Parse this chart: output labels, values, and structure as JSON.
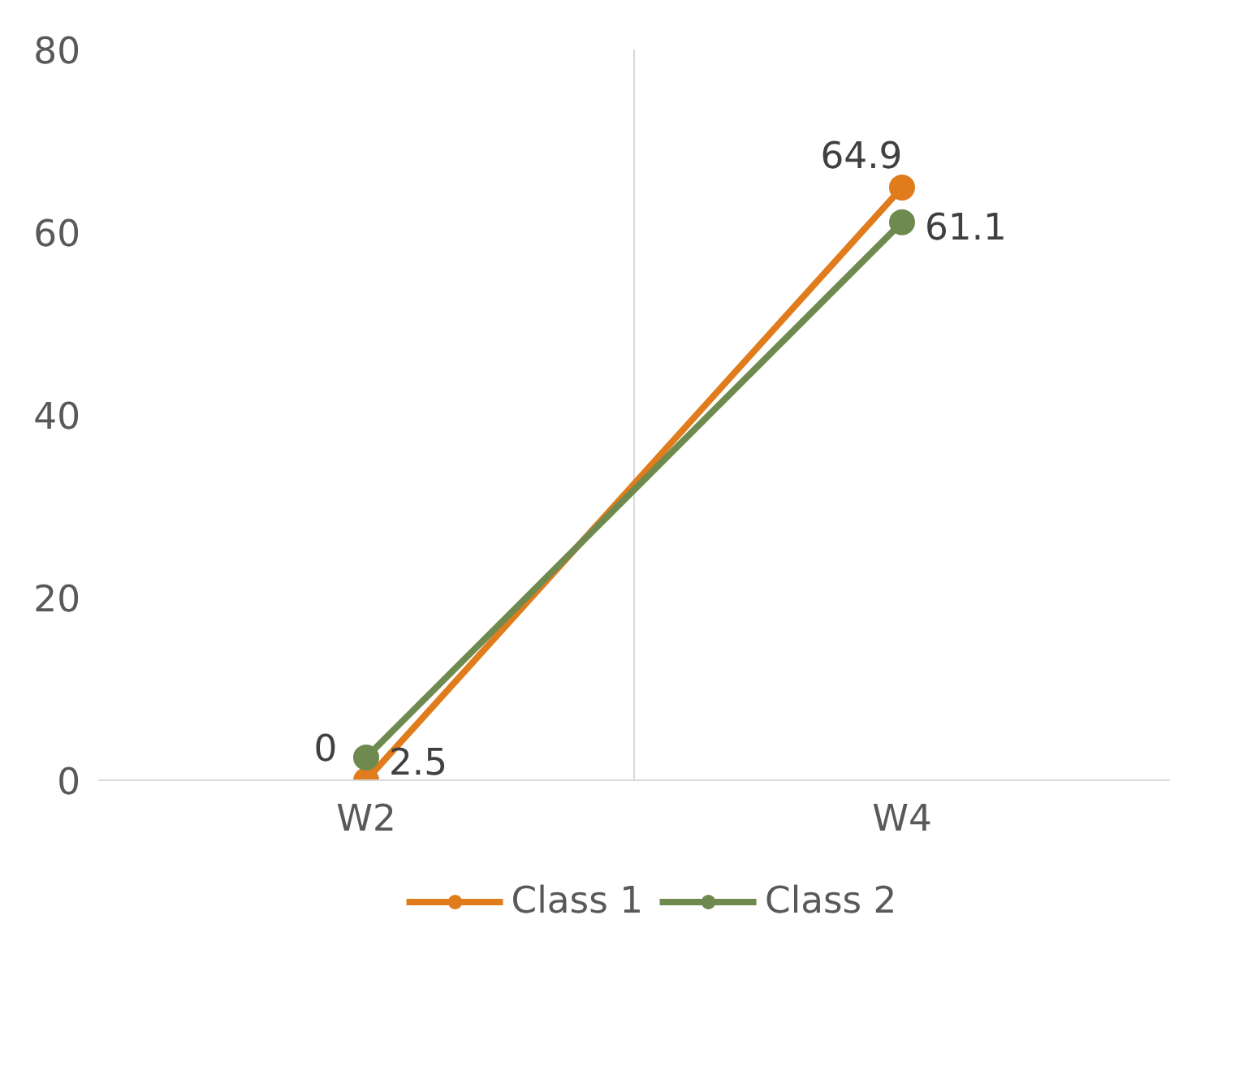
{
  "chart_data": {
    "type": "line",
    "categories": [
      "W2",
      "W4"
    ],
    "series": [
      {
        "name": "Class 1",
        "color": "#e07c1c",
        "values": [
          0,
          64.9
        ]
      },
      {
        "name": "Class 2",
        "color": "#6f8a4f",
        "values": [
          2.5,
          61.1
        ]
      }
    ],
    "ylim": [
      0,
      80
    ],
    "yticks": [
      0,
      20,
      40,
      60,
      80
    ],
    "grid": "x",
    "legend": "bottom",
    "marker": "circle",
    "line_style": "solid",
    "data_labels": true
  }
}
